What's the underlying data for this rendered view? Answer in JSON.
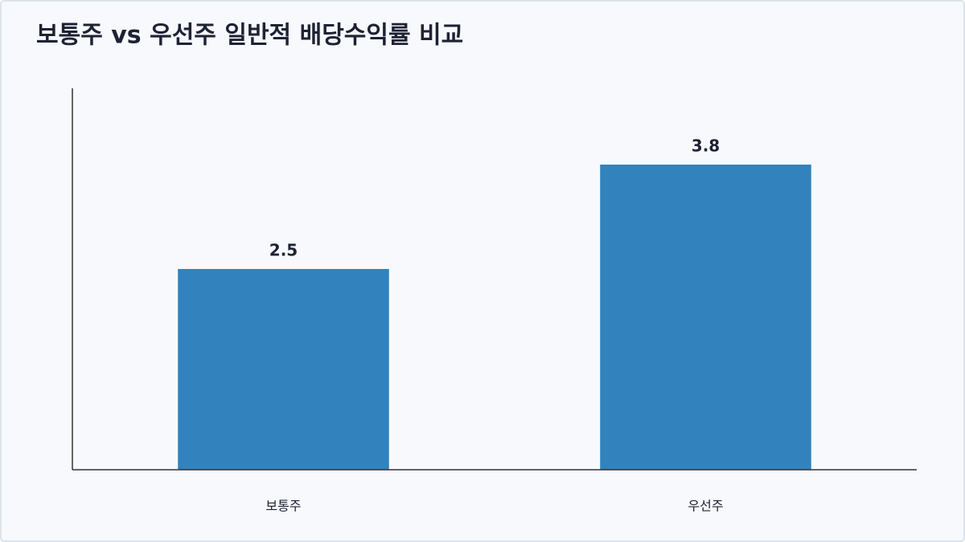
{
  "chart_data": {
    "type": "bar",
    "title": "보통주 vs 우선주 일반적 배당수익률 비교",
    "categories": [
      "보통주",
      "우선주"
    ],
    "values": [
      2.5,
      3.8
    ],
    "color": "#3182bd",
    "ylim": [
      0,
      4.75
    ],
    "grid": false
  }
}
